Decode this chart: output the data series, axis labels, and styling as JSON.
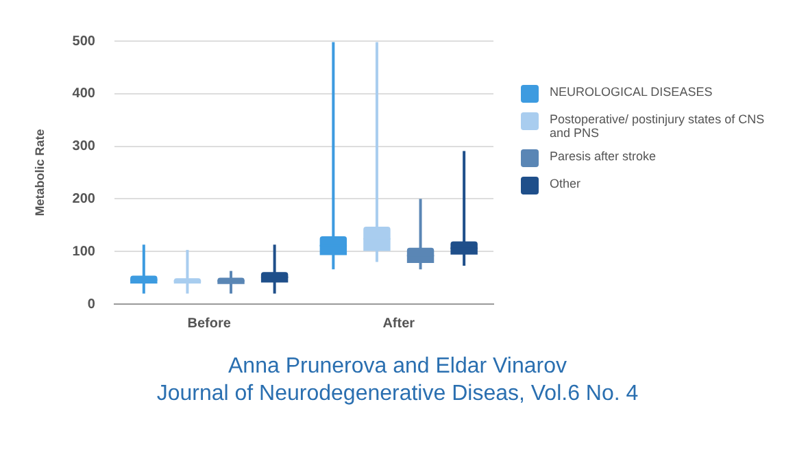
{
  "chart_data": {
    "type": "box",
    "ylabel": "Metabolic Rate",
    "categories": [
      "Before",
      "After"
    ],
    "series": [
      {
        "name": "NEUROLOGICAL DISEASES",
        "color": "#3d9be0",
        "boxes": [
          {
            "low": 20,
            "q1": 39,
            "median": 46,
            "q3": 54,
            "high": 113
          },
          {
            "low": 66,
            "q1": 93,
            "median": 111,
            "q3": 129,
            "high": 498
          }
        ]
      },
      {
        "name": "Postoperative/ postinjury states of CNS and PNS",
        "color": "#a9cdef",
        "boxes": [
          {
            "low": 20,
            "q1": 39,
            "median": 44,
            "q3": 49,
            "high": 103
          },
          {
            "low": 80,
            "q1": 101,
            "median": 124,
            "q3": 147,
            "high": 498
          }
        ]
      },
      {
        "name": "Paresis after stroke",
        "color": "#5a86b5",
        "boxes": [
          {
            "low": 20,
            "q1": 38,
            "median": 44,
            "q3": 50,
            "high": 63
          },
          {
            "low": 66,
            "q1": 78,
            "median": 92,
            "q3": 107,
            "high": 200
          }
        ]
      },
      {
        "name": "Other",
        "color": "#1f4f8a",
        "boxes": [
          {
            "low": 20,
            "q1": 41,
            "median": 51,
            "q3": 61,
            "high": 113
          },
          {
            "low": 73,
            "q1": 94,
            "median": 106,
            "q3": 119,
            "high": 291
          }
        ]
      }
    ],
    "ylim": [
      0,
      500
    ],
    "yticks": [
      0,
      100,
      200,
      300,
      400,
      500
    ],
    "grid": "y",
    "legend": "right",
    "annotations": [
      "Anna Prunerova and Eldar Vinarov",
      "Journal of Neurodegenerative Diseas, Vol.6 No. 4"
    ]
  }
}
